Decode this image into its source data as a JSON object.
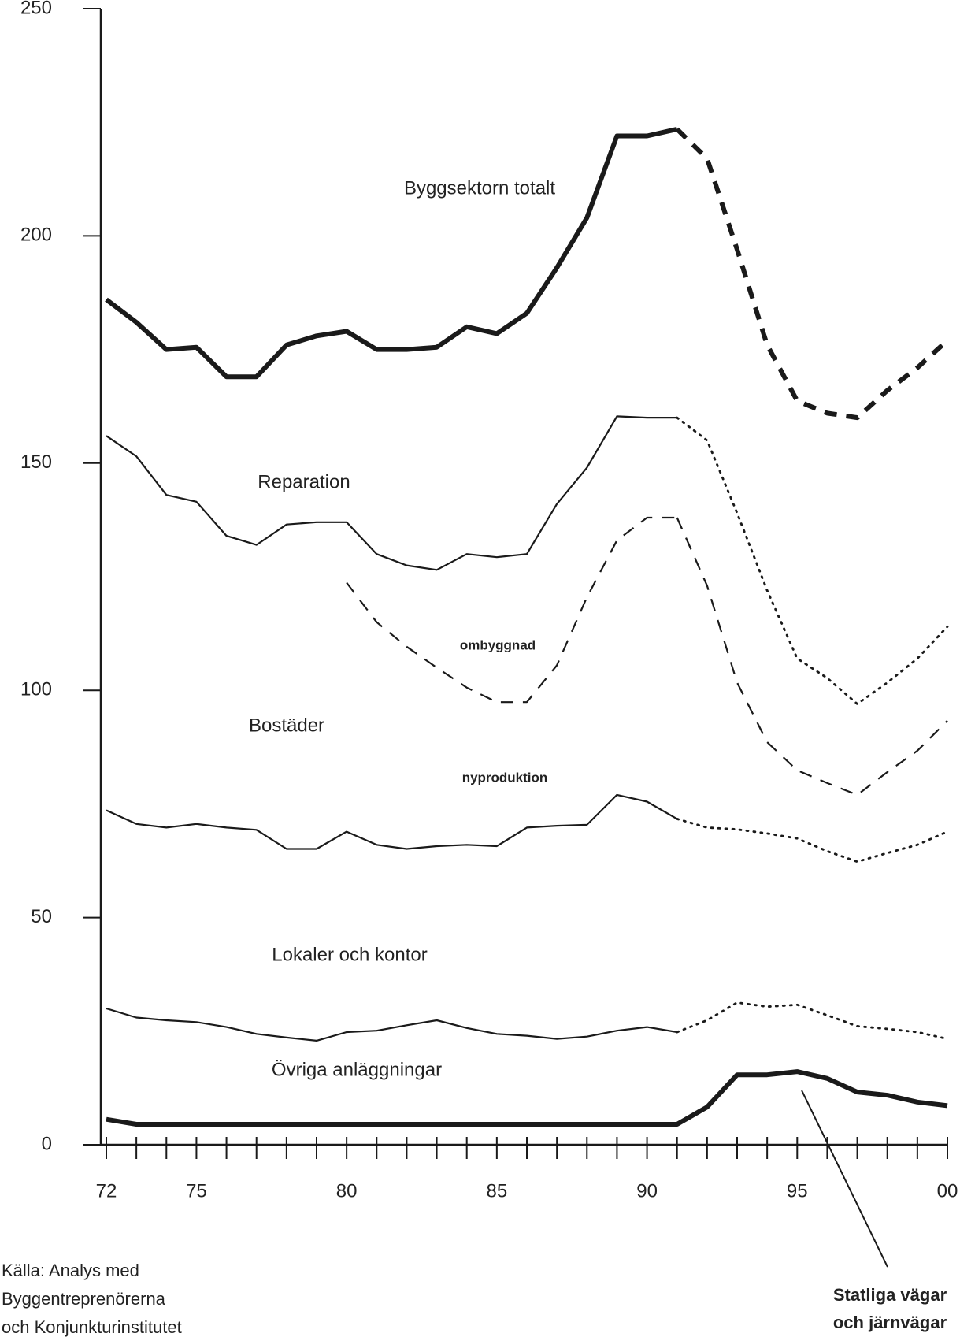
{
  "chart_data": {
    "type": "line",
    "x": [
      72,
      73,
      74,
      75,
      76,
      77,
      78,
      79,
      80,
      81,
      82,
      83,
      84,
      85,
      86,
      87,
      88,
      89,
      90,
      91,
      92,
      93,
      94,
      95,
      96,
      97,
      98,
      99,
      100
    ],
    "xlim": [
      72,
      100
    ],
    "xticks": [
      72,
      75,
      80,
      85,
      90,
      95,
      {
        "value": 100,
        "label": "00"
      }
    ],
    "ylim": [
      0,
      250
    ],
    "yticks": [
      0,
      50,
      100,
      150,
      200,
      250
    ],
    "color": "#1a1a1a",
    "series": [
      {
        "name": "Byggsektorn totalt",
        "width": "thick",
        "line_style": "solid",
        "forecast_style": "dashed",
        "values": [
          186,
          181,
          175,
          175.5,
          169,
          169,
          176,
          178,
          179,
          175,
          175,
          175.5,
          180,
          178.5,
          183,
          193,
          204,
          222,
          222,
          223.5,
          null,
          null,
          null,
          null,
          null,
          null,
          null,
          null,
          null
        ],
        "forecast": [
          null,
          null,
          null,
          null,
          null,
          null,
          null,
          null,
          null,
          null,
          null,
          null,
          null,
          null,
          null,
          null,
          null,
          null,
          null,
          223.5,
          217,
          197,
          176,
          163.7,
          161,
          160,
          166,
          171,
          177
        ]
      },
      {
        "name": "Reparation",
        "width": "thin",
        "line_style": "solid",
        "forecast_style": "dotted",
        "values": [
          156,
          151.5,
          143,
          141.5,
          134,
          132,
          136.5,
          137,
          137,
          130,
          127.5,
          126.5,
          130,
          129.3,
          130,
          141,
          149,
          160.3,
          160,
          160,
          null,
          null,
          null,
          null,
          null,
          null,
          null,
          null,
          null
        ],
        "forecast": [
          null,
          null,
          null,
          null,
          null,
          null,
          null,
          null,
          null,
          null,
          null,
          null,
          null,
          null,
          null,
          null,
          null,
          null,
          null,
          160,
          155,
          139,
          122,
          107,
          102.7,
          97,
          101.7,
          107,
          114
        ]
      },
      {
        "name": "ombyggnad",
        "width": "thin",
        "line_style": "dashed",
        "forecast_style": "dashed",
        "values": [
          null,
          null,
          null,
          null,
          null,
          null,
          null,
          null,
          123.7,
          115,
          109.6,
          105,
          100.6,
          97.4,
          97.4,
          105.5,
          120.5,
          133,
          138,
          138,
          null,
          null,
          null,
          null,
          null,
          null,
          null,
          null,
          null
        ],
        "forecast": [
          null,
          null,
          null,
          null,
          null,
          null,
          null,
          null,
          null,
          null,
          null,
          null,
          null,
          null,
          null,
          null,
          null,
          null,
          null,
          138,
          123,
          101.7,
          88.6,
          82.4,
          79.6,
          77,
          82,
          86.7,
          93.3
        ]
      },
      {
        "name": "nyproduktion",
        "width": "thin",
        "line_style": "solid",
        "forecast_style": "dotted",
        "values": [
          73.6,
          70.6,
          69.8,
          70.6,
          69.8,
          69.3,
          65.1,
          65.1,
          68.9,
          66,
          65.1,
          65.7,
          66,
          65.7,
          69.8,
          70.2,
          70.4,
          77,
          75.5,
          71.7,
          null,
          null,
          null,
          null,
          null,
          null,
          null,
          null,
          null
        ],
        "forecast": [
          null,
          null,
          null,
          null,
          null,
          null,
          null,
          null,
          null,
          null,
          null,
          null,
          null,
          null,
          null,
          null,
          null,
          null,
          null,
          71.7,
          69.8,
          69.4,
          68.5,
          67.4,
          64.6,
          62.3,
          64.2,
          66,
          68.9
        ]
      },
      {
        "name": "Lokaler och kontor",
        "width": "thin",
        "line_style": "solid",
        "forecast_style": "dotted",
        "values": [
          30,
          28,
          27.4,
          27,
          25.9,
          24.4,
          23.6,
          22.9,
          24.8,
          25.1,
          26.3,
          27.4,
          25.7,
          24.4,
          24,
          23.3,
          23.8,
          25.1,
          25.9,
          24.8,
          null,
          null,
          null,
          null,
          null,
          null,
          null,
          null,
          null
        ],
        "forecast": [
          null,
          null,
          null,
          null,
          null,
          null,
          null,
          null,
          null,
          null,
          null,
          null,
          null,
          null,
          null,
          null,
          null,
          null,
          null,
          24.8,
          27.4,
          31.3,
          30.4,
          30.8,
          28.5,
          26.1,
          25.5,
          24.8,
          23.3
        ]
      },
      {
        "name": "Övriga anläggningar",
        "width": "thick",
        "line_style": "solid",
        "forecast_style": "solid",
        "values": [
          5.6,
          4.5,
          4.5,
          4.5,
          4.5,
          4.5,
          4.5,
          4.5,
          4.5,
          4.5,
          4.5,
          4.5,
          4.5,
          4.5,
          4.5,
          4.5,
          4.5,
          4.5,
          4.5,
          4.5,
          8.3,
          15.4,
          15.4,
          16.1,
          14.6,
          11.6,
          10.9,
          9.4,
          8.6
        ],
        "forecast": [
          null,
          null,
          null,
          null,
          null,
          null,
          null,
          null,
          null,
          null,
          null,
          null,
          null,
          null,
          null,
          null,
          null,
          null,
          null,
          null,
          null,
          null,
          null,
          null,
          null,
          null,
          null,
          null,
          null
        ]
      }
    ],
    "annotations": [
      "Bostäder",
      "Statliga vägar",
      "och järnvägar"
    ],
    "source": [
      "Källa: Analys med",
      "Byggentreprenörerna",
      "och Konjunkturinstitutet"
    ]
  }
}
